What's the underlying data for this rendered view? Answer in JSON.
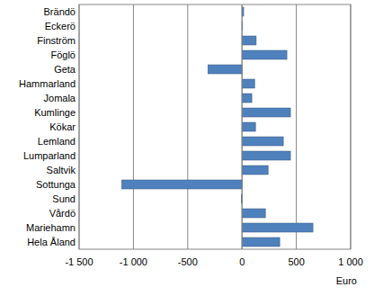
{
  "chart_data": {
    "type": "bar",
    "orientation": "horizontal",
    "categories": [
      "Brändö",
      "Eckerö",
      "Finström",
      "Föglö",
      "Geta",
      "Hammarland",
      "Jomala",
      "Kumlinge",
      "Kökar",
      "Lemland",
      "Lumparland",
      "Saltvik",
      "Sottunga",
      "Sund",
      "Vårdö",
      "Mariehamn",
      "Hela Åland"
    ],
    "values": [
      15,
      5,
      130,
      413,
      -314,
      116,
      90,
      446,
      124,
      380,
      446,
      240,
      -1107,
      -5,
      215,
      653,
      347
    ],
    "color": "#4f81bd",
    "xlabel": "Euro",
    "xlim": [
      -1500,
      1000
    ],
    "xticks": [
      {
        "value": -1500,
        "label": "-1 500"
      },
      {
        "value": -1000,
        "label": "-1 000"
      },
      -500,
      0,
      500,
      {
        "value": 1000,
        "label": "1 000"
      }
    ],
    "grid": true
  }
}
